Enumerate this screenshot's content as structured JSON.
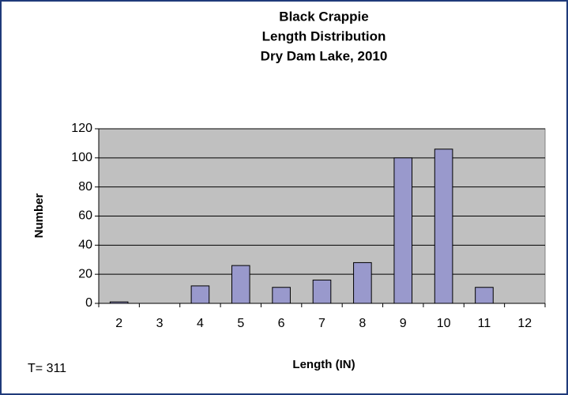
{
  "chart_data": {
    "type": "bar",
    "title": [
      "Black Crappie",
      "Length Distribution",
      "Dry Dam Lake, 2010"
    ],
    "x_label": "Length (IN)",
    "y_label": "Number",
    "annotation": "T= 311",
    "categories": [
      "2",
      "3",
      "4",
      "5",
      "6",
      "7",
      "8",
      "9",
      "10",
      "11",
      "12"
    ],
    "values": [
      1,
      0,
      12,
      26,
      11,
      16,
      28,
      100,
      106,
      11,
      0
    ],
    "color": "#9999cc",
    "ylim": [
      0,
      120
    ],
    "yticks": [
      0,
      20,
      40,
      60,
      80,
      100,
      120
    ],
    "grid": true
  }
}
